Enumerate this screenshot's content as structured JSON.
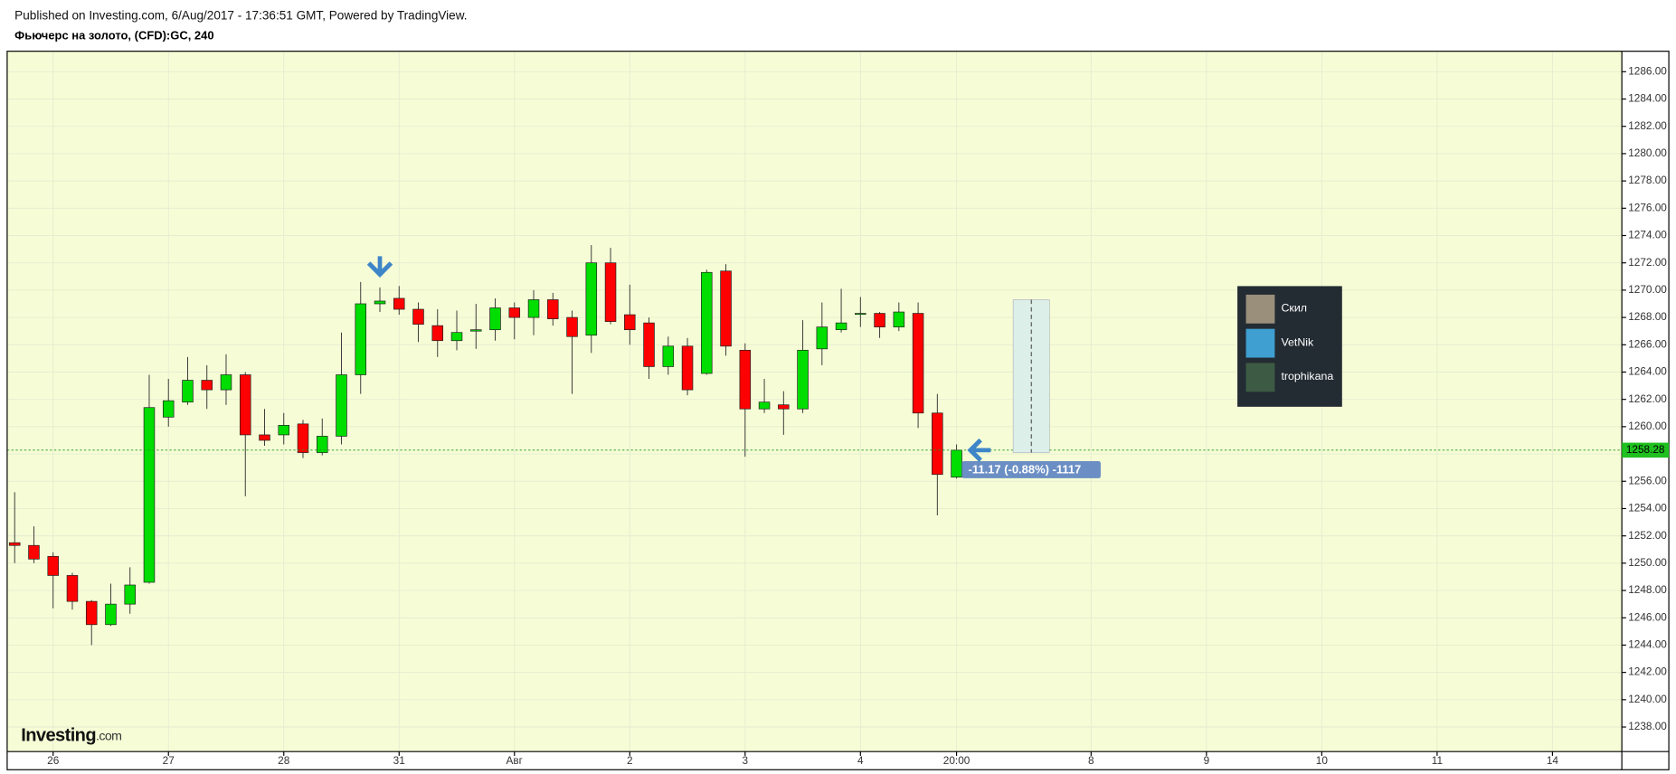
{
  "chart_data": {
    "type": "candlestick",
    "header": "Published on Investing.com, 6/Aug/2017 - 17:36:51 GMT, Powered by TradingView.",
    "title": "Фьючерс на золото, (CFD):GC, 240",
    "logo": [
      "Investing",
      ".com"
    ],
    "up_color": "#00dd00",
    "down_color": "#ff0000",
    "open": [
      1251.5,
      1251.3,
      1250.5,
      1249.1,
      1247.2,
      1245.5,
      1247.0,
      1248.6,
      1260.7,
      1261.8,
      1263.4,
      1262.7,
      1263.8,
      1259.4,
      1259.4,
      1260.2,
      1258.1,
      1259.3,
      1263.8,
      1269.0,
      1269.4,
      1268.6,
      1267.4,
      1266.3,
      1267.0,
      1267.1,
      1268.7,
      1268.0,
      1269.3,
      1268.0,
      1266.7,
      1272.0,
      1268.2,
      1267.6,
      1264.4,
      1265.9,
      1263.9,
      1271.4,
      1265.6,
      1261.3,
      1261.6,
      1261.3,
      1265.7,
      1267.1,
      1268.3,
      1268.3,
      1267.3,
      1268.3,
      1261.0,
      1256.3
    ],
    "high": [
      1255.2,
      1252.7,
      1250.8,
      1249.3,
      1247.3,
      1248.5,
      1249.7,
      1263.8,
      1263.5,
      1265.1,
      1264.5,
      1265.3,
      1264.0,
      1261.3,
      1261.0,
      1260.5,
      1260.6,
      1266.9,
      1270.6,
      1270.2,
      1270.3,
      1269.1,
      1268.6,
      1268.5,
      1269.0,
      1269.4,
      1269.1,
      1270.0,
      1269.8,
      1268.5,
      1273.3,
      1273.1,
      1270.4,
      1268.0,
      1266.6,
      1266.5,
      1271.5,
      1271.9,
      1266.1,
      1263.5,
      1262.6,
      1267.8,
      1269.1,
      1270.1,
      1269.5,
      1268.4,
      1269.1,
      1269.1,
      1262.4,
      1258.7
    ],
    "low": [
      1250.0,
      1250.0,
      1246.7,
      1246.6,
      1244.0,
      1245.4,
      1246.3,
      1248.5,
      1260.0,
      1261.6,
      1261.3,
      1261.6,
      1254.9,
      1258.6,
      1258.7,
      1257.7,
      1257.9,
      1258.7,
      1262.4,
      1268.4,
      1268.2,
      1266.2,
      1265.1,
      1265.6,
      1265.7,
      1266.3,
      1266.4,
      1266.7,
      1267.4,
      1262.4,
      1265.4,
      1267.5,
      1266.0,
      1263.5,
      1263.8,
      1262.3,
      1263.8,
      1265.2,
      1257.8,
      1261.0,
      1259.4,
      1261.0,
      1264.5,
      1266.9,
      1267.3,
      1266.5,
      1267.0,
      1259.9,
      1253.5,
      1256.2
    ],
    "close": [
      1251.3,
      1250.3,
      1249.1,
      1247.2,
      1245.5,
      1247.0,
      1248.4,
      1261.4,
      1261.9,
      1263.4,
      1262.7,
      1263.8,
      1259.4,
      1259.0,
      1260.1,
      1258.1,
      1259.3,
      1263.8,
      1269.0,
      1269.2,
      1268.6,
      1267.5,
      1266.3,
      1266.9,
      1267.1,
      1268.7,
      1268.0,
      1269.3,
      1267.9,
      1266.6,
      1272.0,
      1267.7,
      1267.1,
      1264.4,
      1265.9,
      1262.7,
      1271.3,
      1265.9,
      1261.3,
      1261.8,
      1261.3,
      1265.6,
      1267.3,
      1267.6,
      1268.3,
      1267.3,
      1268.4,
      1261.0,
      1256.5,
      1258.28
    ],
    "ylim": [
      1236.2,
      1287.5
    ],
    "yticks": [
      {
        "value": 1238,
        "label": "1238.00"
      },
      {
        "value": 1240,
        "label": "1240.00"
      },
      {
        "value": 1242,
        "label": "1242.00"
      },
      {
        "value": 1244,
        "label": "1244.00"
      },
      {
        "value": 1246,
        "label": "1246.00"
      },
      {
        "value": 1248,
        "label": "1248.00"
      },
      {
        "value": 1250,
        "label": "1250.00"
      },
      {
        "value": 1252,
        "label": "1252.00"
      },
      {
        "value": 1254,
        "label": "1254.00"
      },
      {
        "value": 1256,
        "label": "1256.00"
      },
      {
        "value": 1258,
        "label": "1258.00"
      },
      {
        "value": 1260,
        "label": "1260.00"
      },
      {
        "value": 1262,
        "label": "1262.00"
      },
      {
        "value": 1264,
        "label": "1264.00"
      },
      {
        "value": 1266,
        "label": "1266.00"
      },
      {
        "value": 1268,
        "label": "1268.00"
      },
      {
        "value": 1270,
        "label": "1270.00"
      },
      {
        "value": 1272,
        "label": "1272.00"
      },
      {
        "value": 1274,
        "label": "1274.00"
      },
      {
        "value": 1276,
        "label": "1276.00"
      },
      {
        "value": 1278,
        "label": "1278.00"
      },
      {
        "value": 1280,
        "label": "1280.00"
      },
      {
        "value": 1282,
        "label": "1282.00"
      },
      {
        "value": 1284,
        "label": "1284.00"
      },
      {
        "value": 1286,
        "label": "1286.00"
      }
    ],
    "xlim": [
      -0.39,
      83.61
    ],
    "xticks": [
      {
        "value": 2,
        "label": "26"
      },
      {
        "value": 8,
        "label": "27"
      },
      {
        "value": 14,
        "label": "28"
      },
      {
        "value": 20,
        "label": "31"
      },
      {
        "value": 26,
        "label": "Авг"
      },
      {
        "value": 32,
        "label": "2"
      },
      {
        "value": 38,
        "label": "3"
      },
      {
        "value": 44,
        "label": "4"
      },
      {
        "value": 49,
        "label": "20:00"
      },
      {
        "value": 56,
        "label": "8"
      },
      {
        "value": 62,
        "label": "9"
      },
      {
        "value": 68,
        "label": "10"
      },
      {
        "value": 74,
        "label": "11"
      },
      {
        "value": 80,
        "label": "14"
      }
    ],
    "grid": true,
    "last_price": {
      "value": 1258.28,
      "label": "1258.28"
    },
    "measure": {
      "label": "-11.17 (-0.88%) -1117",
      "start": 1269.3,
      "end": 1258.1
    },
    "users": [
      "Скил",
      "VetNik",
      "trophikana"
    ]
  }
}
